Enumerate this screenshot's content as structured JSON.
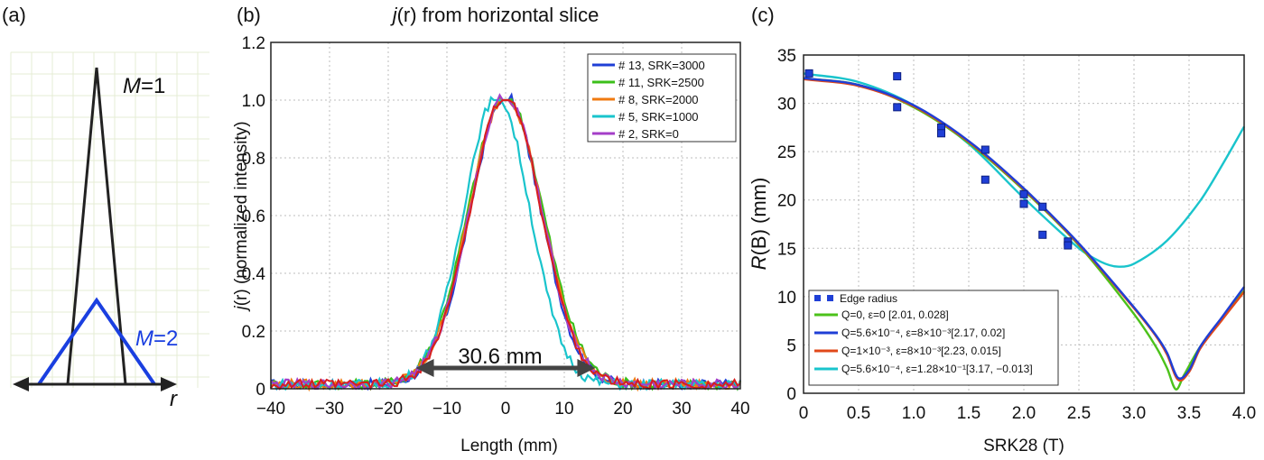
{
  "panel_labels": [
    "(a)",
    "(b)",
    "(c)"
  ],
  "chart_data": [
    {
      "type": "diagram",
      "lines": [
        {
          "label_var": "M",
          "label_val": "=1",
          "color": "#222222"
        },
        {
          "label_var": "M",
          "label_val": "=2",
          "color": "#1a3fe0"
        }
      ],
      "axis_label": "r"
    },
    {
      "type": "line",
      "title_var": "j",
      "title_arg": "(r)",
      "title_rest": " from horizontal slice",
      "xlabel": "Length (mm)",
      "ylabel_var": "j",
      "ylabel_rest": "(r) (normalized intensity)",
      "xlim": [
        -40,
        40
      ],
      "ylim": [
        0,
        1.2
      ],
      "xticks": [
        "−40",
        "−30",
        "−20",
        "−10",
        "0",
        "10",
        "20",
        "30",
        "40"
      ],
      "yticks": [
        "0",
        "0.2",
        "0.4",
        "0.6",
        "0.8",
        "1.0",
        "1.2"
      ],
      "grid": true,
      "legend_position": "top-right",
      "annotation": "30.6 mm",
      "fwhm_range": [
        -15.3,
        15.3
      ],
      "series": [
        {
          "name": "# 13, SRK=3000",
          "color": "#1f3fd6",
          "width": 10.0,
          "peak": 0.0
        },
        {
          "name": "# 11, SRK=2500",
          "color": "#3bbf1a",
          "width": 10.6,
          "peak": 0.0
        },
        {
          "name": "# 8, SRK=2000",
          "color": "#f07a10",
          "width": 10.3,
          "peak": 0.0
        },
        {
          "name": "# 5, SRK=1000",
          "color": "#19c4cc",
          "width": 9.4,
          "peak": -1.5
        },
        {
          "name": "# 2, SRK=0",
          "color": "#a43ec8",
          "width": 10.2,
          "peak": 0.0
        }
      ],
      "extra_line_color": "#d81e1e"
    },
    {
      "type": "scatter+line",
      "xlabel": "SRK28 (T)",
      "ylabel_var": "R",
      "ylabel_arg": "(B)",
      "ylabel_rest": " (mm)",
      "xlim": [
        0,
        4.0
      ],
      "ylim": [
        0,
        35
      ],
      "xticks": [
        "0",
        "0.5",
        "1.0",
        "1.5",
        "2.0",
        "2.5",
        "3.0",
        "3.5",
        "4.0"
      ],
      "yticks": [
        "0",
        "5",
        "10",
        "15",
        "20",
        "25",
        "30",
        "35"
      ],
      "grid": true,
      "legend_position": "bottom-left",
      "points_name": "Edge radius",
      "points": [
        [
          0.05,
          33.1
        ],
        [
          0.85,
          32.8
        ],
        [
          0.85,
          29.6
        ],
        [
          1.25,
          27.5
        ],
        [
          1.25,
          26.9
        ],
        [
          1.65,
          25.2
        ],
        [
          1.65,
          22.1
        ],
        [
          2.0,
          20.6
        ],
        [
          2.0,
          19.6
        ],
        [
          2.17,
          19.3
        ],
        [
          2.17,
          16.4
        ],
        [
          2.4,
          15.7
        ],
        [
          2.4,
          15.3
        ]
      ],
      "series": [
        {
          "name": "Q=0, ε=0 [2.01, 0.028]",
          "color": "#4cc21a",
          "x": [
            0,
            0.5,
            1.0,
            1.5,
            2.0,
            2.5,
            3.0,
            3.2,
            3.3,
            3.38,
            3.45,
            3.6,
            3.8,
            4.0
          ],
          "y": [
            32.6,
            31.9,
            29.6,
            25.9,
            21.0,
            15.3,
            8.2,
            4.8,
            2.6,
            0.4,
            1.8,
            4.8,
            7.8,
            10.6
          ]
        },
        {
          "name": "Q=5.6×10⁻⁴, ε=8×10⁻³[2.17, 0.02]",
          "color": "#1f3fd6",
          "x": [
            0,
            0.5,
            1.0,
            1.5,
            2.0,
            2.5,
            3.0,
            3.2,
            3.3,
            3.4,
            3.5,
            3.6,
            3.8,
            4.0
          ],
          "y": [
            32.6,
            31.9,
            29.8,
            26.1,
            21.2,
            15.5,
            8.9,
            6.0,
            4.2,
            1.6,
            2.4,
            4.8,
            7.9,
            11.0
          ]
        },
        {
          "name": "Q=1×10⁻³, ε=8×10⁻³[2.23, 0.015]",
          "color": "#e0481a",
          "x": [
            0,
            0.5,
            1.0,
            1.5,
            2.0,
            2.5,
            3.0,
            3.2,
            3.3,
            3.4,
            3.5,
            3.6,
            3.8,
            4.0
          ],
          "y": [
            32.5,
            31.8,
            29.7,
            26.0,
            21.1,
            15.4,
            8.8,
            5.9,
            4.0,
            1.4,
            2.2,
            4.6,
            7.6,
            10.5
          ]
        },
        {
          "name": "Q=5.6×10⁻⁴, ε=1.28×10⁻¹[3.17, −0.013]",
          "color": "#19c4cc",
          "x": [
            0,
            0.5,
            1.0,
            1.5,
            2.0,
            2.5,
            2.7,
            2.85,
            3.0,
            3.3,
            3.6,
            3.8,
            4.0
          ],
          "y": [
            33.1,
            32.2,
            29.8,
            25.8,
            20.2,
            15.0,
            13.6,
            13.1,
            13.4,
            15.8,
            19.9,
            23.6,
            27.6
          ]
        }
      ]
    }
  ]
}
